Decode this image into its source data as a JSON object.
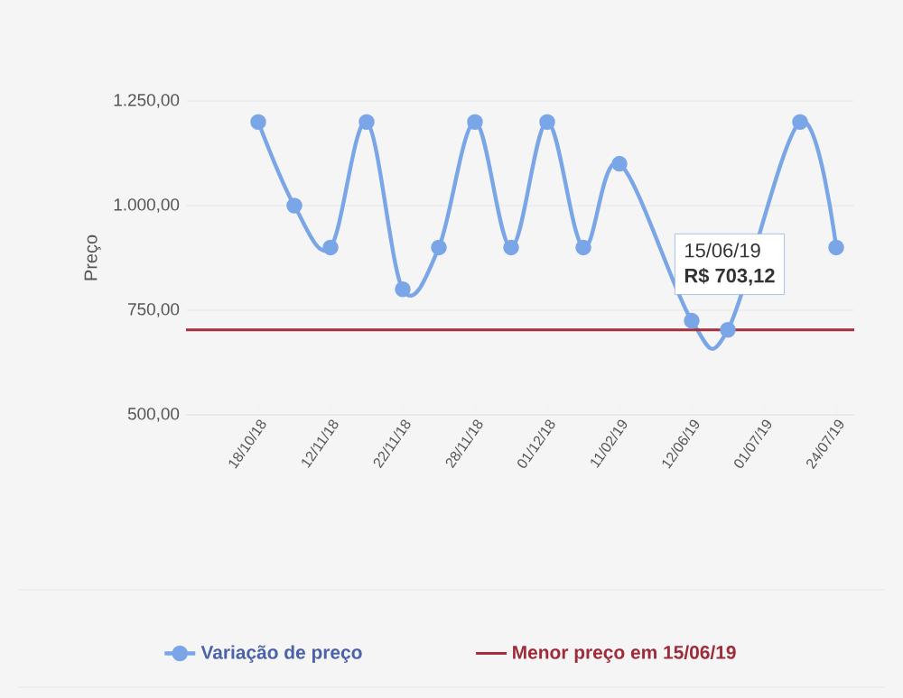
{
  "chart_data": {
    "type": "line",
    "ylabel": "Preço",
    "categories": [
      "18/10/18",
      null,
      "12/11/18",
      null,
      "22/11/18",
      null,
      "28/11/18",
      null,
      "01/12/18",
      null,
      "11/02/19",
      null,
      "12/06/19",
      null,
      "01/07/19",
      null,
      "24/07/19"
    ],
    "series": [
      {
        "name": "Variação de preço",
        "color": "#7aa6e8",
        "values": [
          1200,
          1000,
          900,
          1200,
          800,
          900,
          1200,
          900,
          1200,
          900,
          1100,
          null,
          725,
          703.12,
          null,
          1200,
          900
        ]
      }
    ],
    "ylim": [
      500,
      1250
    ],
    "yticks": [
      {
        "value": 500,
        "label": "500,00"
      },
      {
        "value": 750,
        "label": "750,00"
      },
      {
        "value": 1000,
        "label": "1.000,00"
      },
      {
        "value": 1250,
        "label": "1.250,00"
      }
    ],
    "grid": "y",
    "marker": "circle",
    "legend": "bottom",
    "ref_lines": [
      {
        "axis": "y",
        "value": 703.12,
        "label": "Menor preço em 15/06/19",
        "color": "#a3303c"
      }
    ],
    "annotations": [
      "15/06/19",
      "R$ 703,12"
    ]
  }
}
